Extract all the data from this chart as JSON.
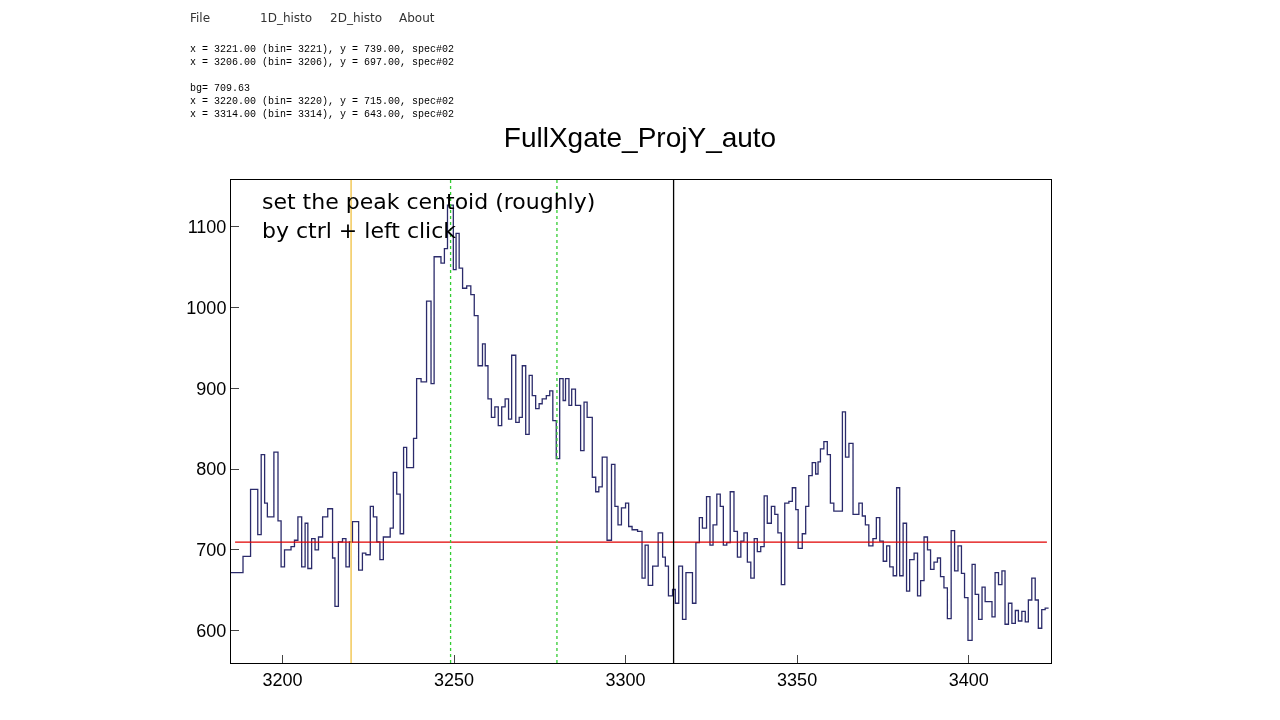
{
  "chart_data": {
    "type": "histogram",
    "title": "FullXgate_ProjY_auto",
    "annotations": [
      "set the peak centoid (roughly)\nby ctrl + left click",
      "x = 3221.00 (bin= 3221), y = 739.00, spec#02\nx = 3206.00 (bin= 3206), y = 697.00, spec#02\n\nbg= 709.63\nx = 3220.00 (bin= 3220), y = 715.00, spec#02\nx = 3314.00 (bin= 3314), y = 643.00, spec#02",
      "File",
      "1D_histo",
      "2D_histo",
      "About"
    ],
    "bins": [
      3185,
      3188.5,
      3190.7,
      3192.8,
      3193.8,
      3194.8,
      3195.6,
      3197.5,
      3198.7,
      3199.6,
      3200.6,
      3202.5,
      3203.5,
      3204.5,
      3205.6,
      3206.6,
      3207.4,
      3208.5,
      3209.5,
      3210.5,
      3211.7,
      3213.2,
      3214.6,
      3215.3,
      3216.3,
      3217.5,
      3218.5,
      3219.5,
      3220.4,
      3222.2,
      3223.3,
      3224.3,
      3225.6,
      3226.5,
      3227.5,
      3228.4,
      3229.4,
      3231.4,
      3232.3,
      3233.3,
      3234.3,
      3235.3,
      3236.2,
      3238.2,
      3239.1,
      3240.4,
      3242.0,
      3243.3,
      3244.2,
      3246.2,
      3247.2,
      3248.1,
      3249.8,
      3250.6,
      3251.5,
      3252.5,
      3253.7,
      3254.9,
      3255.9,
      3257.0,
      3258.3,
      3259.1,
      3259.9,
      3260.9,
      3261.9,
      3262.9,
      3263.9,
      3264.9,
      3265.9,
      3266.8,
      3268.0,
      3269.0,
      3269.9,
      3270.9,
      3271.9,
      3272.8,
      3273.8,
      3274.8,
      3275.7,
      3276.9,
      3277.9,
      3278.8,
      3279.8,
      3280.8,
      3281.8,
      3282.5,
      3283.5,
      3284.3,
      3285.4,
      3286.9,
      3287.9,
      3288.8,
      3290.3,
      3291.3,
      3292.2,
      3293.2,
      3294.6,
      3295.9,
      3296.9,
      3297.8,
      3298.8,
      3300.0,
      3300.9,
      3301.9,
      3303.5,
      3304.8,
      3305.7,
      3306.6,
      3307.9,
      3309.5,
      3310.8,
      3311.6,
      3312.5,
      3313.7,
      3314.5,
      3315.5,
      3316.6,
      3317.6,
      3319.5,
      3320.5,
      3321.5,
      3322.4,
      3323.6,
      3324.6,
      3325.5,
      3326.6,
      3327.6,
      3328.5,
      3329.5,
      3330.5,
      3331.6,
      3332.6,
      3333.6,
      3334.5,
      3335.5,
      3336.5,
      3337.5,
      3338.4,
      3339.4,
      3340.4,
      3341.3,
      3342.5,
      3343.5,
      3344.4,
      3345.4,
      3346.4,
      3347.6,
      3348.6,
      3349.6,
      3350.3,
      3351.5,
      3352.5,
      3353.4,
      3354.4,
      3355.4,
      3356.1,
      3356.8,
      3357.8,
      3358.8,
      3359.7,
      3360.7,
      3363.2,
      3364.1,
      3365.1,
      3366.3,
      3368.0,
      3369.0,
      3369.9,
      3370.9,
      3372.1,
      3373.1,
      3374.1,
      3375.1,
      3376.1,
      3377.0,
      3378.0,
      3379.0,
      3379.9,
      3380.9,
      3381.9,
      3382.8,
      3384.1,
      3385.1,
      3386.0,
      3387.0,
      3388.0,
      3388.9,
      3389.9,
      3390.9,
      3391.8,
      3392.8,
      3393.8,
      3394.9,
      3395.9,
      3396.9,
      3397.9,
      3398.8,
      3399.8,
      3401.0,
      3401.9,
      3402.9,
      3403.9,
      3404.8,
      3406.8,
      3407.7,
      3408.7,
      3409.7,
      3410.6,
      3411.6,
      3412.6,
      3413.6,
      3414.5,
      3415.5,
      3416.5,
      3417.4,
      3418.4,
      3419.4,
      3420.3,
      3421.3,
      3422.3,
      3423.3
    ],
    "values": [
      672,
      692,
      775,
      719,
      818,
      758,
      741,
      821,
      736,
      679,
      700,
      704,
      712,
      741,
      679,
      733,
      677,
      714,
      700,
      716,
      741,
      751,
      690,
      630,
      710,
      714,
      679,
      710,
      735,
      675,
      696,
      694,
      754,
      741,
      710,
      688,
      716,
      727,
      796,
      769,
      720,
      827,
      802,
      838,
      912,
      908,
      1008,
      906,
      1063,
      1055,
      1073,
      1127,
      1047,
      1092,
      1049,
      1024,
      1027,
      1016,
      990,
      928,
      955,
      928,
      887,
      864,
      877,
      854,
      877,
      887,
      862,
      941,
      858,
      864,
      928,
      843,
      916,
      891,
      875,
      881,
      887,
      891,
      897,
      860,
      813,
      912,
      885,
      912,
      879,
      899,
      879,
      823,
      883,
      864,
      790,
      772,
      778,
      815,
      712,
      806,
      754,
      731,
      752,
      758,
      729,
      725,
      723,
      665,
      706,
      656,
      680,
      721,
      691,
      680,
      643,
      651,
      634,
      680,
      614,
      672,
      634,
      709,
      740,
      727,
      766,
      706,
      731,
      769,
      754,
      706,
      709,
      772,
      723,
      691,
      711,
      721,
      685,
      665,
      714,
      698,
      704,
      767,
      733,
      754,
      744,
      721,
      657,
      758,
      760,
      777,
      750,
      702,
      720,
      754,
      792,
      808,
      794,
      809,
      825,
      834,
      818,
      758,
      748,
      871,
      815,
      832,
      744,
      758,
      742,
      731,
      705,
      714,
      740,
      711,
      686,
      705,
      679,
      668,
      777,
      668,
      733,
      649,
      688,
      696,
      643,
      662,
      716,
      700,
      676,
      685,
      690,
      667,
      653,
      615,
      724,
      674,
      705,
      671,
      641,
      588,
      682,
      645,
      614,
      654,
      636,
      617,
      672,
      657,
      674,
      608,
      634,
      609,
      625,
      612,
      624,
      611,
      638,
      665,
      638,
      603,
      626,
      628
    ],
    "color": "#2b2b6b",
    "xlim": [
      3185,
      3424
    ],
    "ylim": [
      560,
      1158
    ],
    "xticks": [
      3200,
      3250,
      3300,
      3350,
      3400
    ],
    "yticks": [
      600,
      700,
      800,
      900,
      1000,
      1100
    ],
    "ref_lines": [
      {
        "axis": "y",
        "value": 709.63,
        "color": "#e00000",
        "line_style": "solid"
      },
      {
        "axis": "x",
        "value": 3220,
        "color": "#f0c040",
        "line_style": "solid"
      },
      {
        "axis": "x",
        "value": 3249,
        "color": "#33cc33",
        "line_style": "dotted"
      },
      {
        "axis": "x",
        "value": 3280,
        "color": "#33cc33",
        "line_style": "dotted"
      },
      {
        "axis": "x",
        "value": 3314,
        "color": "#000000",
        "line_style": "solid"
      }
    ]
  }
}
